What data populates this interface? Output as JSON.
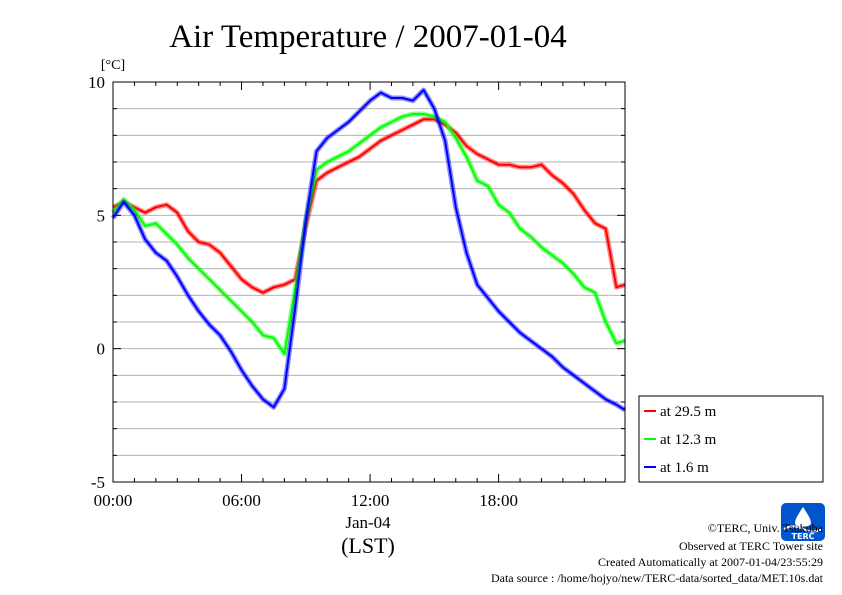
{
  "chart_data": {
    "type": "line",
    "title": "Air Temperature / 2007-01-04",
    "unit": "[°C]",
    "xlabel_date": "Jan-04",
    "xlabel": "(LST)",
    "x_ticks": [
      "00:00",
      "06:00",
      "12:00",
      "18:00"
    ],
    "x_tick_hours": [
      0,
      6,
      12,
      18
    ],
    "xlim_hours": [
      0,
      23.9
    ],
    "y_ticks": [
      "10",
      "5",
      "0",
      "-5"
    ],
    "y_tick_values": [
      10,
      5,
      0,
      -5
    ],
    "ylim": [
      -5,
      10
    ],
    "grid": true,
    "legend_position": "right",
    "series": [
      {
        "name": "at 29.5 m",
        "color": "#ff0000",
        "x": [
          0,
          0.5,
          1,
          1.5,
          2,
          2.5,
          3,
          3.5,
          4,
          4.5,
          5,
          5.5,
          6,
          6.5,
          7,
          7.5,
          8,
          8.5,
          9,
          9.5,
          10,
          10.5,
          11,
          11.5,
          12,
          12.5,
          13,
          13.5,
          14,
          14.5,
          15,
          15.5,
          16,
          16.5,
          17,
          17.5,
          18,
          18.5,
          19,
          19.5,
          20,
          20.5,
          21,
          21.5,
          22,
          22.5,
          23,
          23.5,
          23.9
        ],
        "values": [
          5.3,
          5.5,
          5.3,
          5.1,
          5.3,
          5.4,
          5.1,
          4.4,
          4.0,
          3.9,
          3.6,
          3.1,
          2.6,
          2.3,
          2.1,
          2.3,
          2.4,
          2.6,
          4.6,
          6.3,
          6.6,
          6.8,
          7.0,
          7.2,
          7.5,
          7.8,
          8.0,
          8.2,
          8.4,
          8.6,
          8.6,
          8.4,
          8.1,
          7.6,
          7.3,
          7.1,
          6.9,
          6.9,
          6.8,
          6.8,
          6.9,
          6.5,
          6.2,
          5.8,
          5.2,
          4.7,
          4.5,
          2.3,
          2.4
        ]
      },
      {
        "name": "at 12.3 m",
        "color": "#00ff00",
        "x": [
          0,
          0.5,
          1,
          1.5,
          2,
          2.5,
          3,
          3.5,
          4,
          4.5,
          5,
          5.5,
          6,
          6.5,
          7,
          7.5,
          8,
          8.5,
          9,
          9.5,
          10,
          10.5,
          11,
          11.5,
          12,
          12.5,
          13,
          13.5,
          14,
          14.5,
          15,
          15.5,
          16,
          16.5,
          17,
          17.5,
          18,
          18.5,
          19,
          19.5,
          20,
          20.5,
          21,
          21.5,
          22,
          22.5,
          23,
          23.5,
          23.9
        ],
        "values": [
          5.1,
          5.6,
          5.2,
          4.6,
          4.7,
          4.3,
          3.9,
          3.4,
          3.0,
          2.6,
          2.2,
          1.8,
          1.4,
          1.0,
          0.5,
          0.4,
          -0.2,
          2.2,
          4.8,
          6.7,
          7.0,
          7.2,
          7.4,
          7.7,
          8.0,
          8.3,
          8.5,
          8.7,
          8.8,
          8.8,
          8.7,
          8.5,
          7.9,
          7.2,
          6.3,
          6.1,
          5.4,
          5.1,
          4.5,
          4.2,
          3.8,
          3.5,
          3.2,
          2.8,
          2.3,
          2.1,
          1.0,
          0.2,
          0.3
        ]
      },
      {
        "name": "at 1.6 m",
        "color": "#0000ff",
        "x": [
          0,
          0.5,
          1,
          1.5,
          2,
          2.5,
          3,
          3.5,
          4,
          4.5,
          5,
          5.5,
          6,
          6.5,
          7,
          7.5,
          8,
          8.5,
          9,
          9.5,
          10,
          10.5,
          11,
          11.5,
          12,
          12.5,
          13,
          13.5,
          14,
          14.5,
          15,
          15.5,
          16,
          16.5,
          17,
          17.5,
          18,
          18.5,
          19,
          19.5,
          20,
          20.5,
          21,
          21.5,
          22,
          22.5,
          23,
          23.5,
          23.9
        ],
        "values": [
          4.9,
          5.5,
          5.0,
          4.1,
          3.6,
          3.3,
          2.7,
          2.0,
          1.4,
          0.9,
          0.5,
          -0.1,
          -0.8,
          -1.4,
          -1.9,
          -2.2,
          -1.5,
          1.5,
          4.8,
          7.4,
          7.9,
          8.2,
          8.5,
          8.9,
          9.3,
          9.6,
          9.4,
          9.4,
          9.3,
          9.7,
          9.0,
          7.8,
          5.3,
          3.6,
          2.4,
          1.9,
          1.4,
          1.0,
          0.6,
          0.3,
          0.0,
          -0.3,
          -0.7,
          -1.0,
          -1.3,
          -1.6,
          -1.9,
          -2.1,
          -2.3
        ]
      }
    ]
  },
  "footer": {
    "credit": "©TERC, Univ. Tsukuba",
    "site": "Observed at TERC Tower site",
    "created": "Created Automatically at 2007-01-04/23:55:29",
    "source": "Data source : /home/hojyo/new/TERC-data/sorted_data/MET.10s.dat",
    "logo_text": "TERC",
    "logo_color": "#0055cc"
  }
}
